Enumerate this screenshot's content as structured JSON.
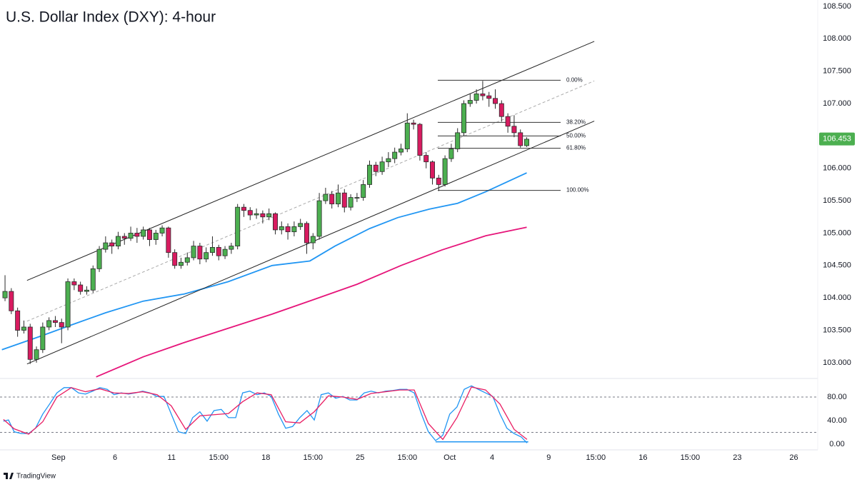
{
  "chart_data": [
    {
      "type": "candlestick",
      "title": "U.S. Dollar Index (DXY): 4-hour",
      "x": [
        -17,
        -15,
        -13,
        -11,
        -9,
        -7,
        -5,
        -3,
        -1,
        1,
        3,
        5,
        7,
        9,
        11,
        13,
        15,
        17,
        19,
        21,
        23,
        25,
        27,
        29,
        31,
        33,
        35,
        37,
        39,
        41,
        43,
        45,
        47,
        49,
        51,
        53,
        55,
        57,
        59,
        61,
        63,
        65,
        67,
        69,
        71,
        73,
        75,
        77,
        79,
        81,
        83,
        85,
        87,
        89,
        91,
        93,
        95,
        97,
        99,
        101,
        103,
        105,
        107,
        109,
        111,
        113,
        115,
        117,
        119,
        121,
        123,
        125,
        127,
        129,
        131,
        133,
        135,
        137,
        139,
        141,
        143,
        145,
        147,
        149
      ],
      "open": [
        104.0,
        104.1,
        103.8,
        103.5,
        103.55,
        103.05,
        103.2,
        103.55,
        103.65,
        103.62,
        103.55,
        104.25,
        104.2,
        104.1,
        104.12,
        104.45,
        104.75,
        104.85,
        104.8,
        104.95,
        104.92,
        105.0,
        104.95,
        105.05,
        104.9,
        105.0,
        105.08,
        104.7,
        104.5,
        104.55,
        104.62,
        104.8,
        104.6,
        104.7,
        104.78,
        104.65,
        104.75,
        104.8,
        105.4,
        105.35,
        105.28,
        105.3,
        105.25,
        105.3,
        105.05,
        105.1,
        105.02,
        105.1,
        105.15,
        104.85,
        104.95,
        105.5,
        105.6,
        105.45,
        105.62,
        105.4,
        105.55,
        105.55,
        105.75,
        106.05,
        105.95,
        106.1,
        106.15,
        106.25,
        106.3,
        106.7,
        106.68,
        106.2,
        106.1,
        105.85,
        105.75,
        106.15,
        106.3,
        106.55,
        107.0,
        107.05,
        107.15,
        107.12,
        107.08,
        107.0,
        106.8,
        106.65,
        106.55,
        106.35
      ],
      "high": [
        104.35,
        104.15,
        103.85,
        103.65,
        103.6,
        103.25,
        103.62,
        103.7,
        103.72,
        103.68,
        104.3,
        104.3,
        104.25,
        104.18,
        104.5,
        104.8,
        104.95,
        104.9,
        105.02,
        105.0,
        105.1,
        105.08,
        105.1,
        105.08,
        105.05,
        105.12,
        105.1,
        104.75,
        104.62,
        104.7,
        104.88,
        104.85,
        104.78,
        104.95,
        104.82,
        104.8,
        104.85,
        105.45,
        105.45,
        105.4,
        105.38,
        105.35,
        105.38,
        105.32,
        105.18,
        105.15,
        105.18,
        105.22,
        105.18,
        105.0,
        105.62,
        105.7,
        105.65,
        105.75,
        105.68,
        105.6,
        105.62,
        105.82,
        106.12,
        106.1,
        106.18,
        106.25,
        106.32,
        106.38,
        106.85,
        106.75,
        106.7,
        106.25,
        106.12,
        105.9,
        106.2,
        106.38,
        106.62,
        107.05,
        107.15,
        107.22,
        107.35,
        107.18,
        107.22,
        107.05,
        106.85,
        106.82,
        106.6,
        106.48
      ],
      "low": [
        103.95,
        103.75,
        103.4,
        103.45,
        102.98,
        103.0,
        103.15,
        103.5,
        103.55,
        103.3,
        103.5,
        104.12,
        104.05,
        104.05,
        104.08,
        104.4,
        104.7,
        104.68,
        104.75,
        104.82,
        104.88,
        104.85,
        104.9,
        104.8,
        104.82,
        104.95,
        104.62,
        104.45,
        104.45,
        104.5,
        104.58,
        104.52,
        104.55,
        104.65,
        104.58,
        104.6,
        104.68,
        104.75,
        105.25,
        105.2,
        105.22,
        105.15,
        105.2,
        104.98,
        104.98,
        104.9,
        104.95,
        105.05,
        104.68,
        104.75,
        104.9,
        105.45,
        105.38,
        105.4,
        105.32,
        105.35,
        105.48,
        105.5,
        105.7,
        105.88,
        105.9,
        106.02,
        106.08,
        106.2,
        106.25,
        106.6,
        106.12,
        106.0,
        105.75,
        105.65,
        105.72,
        106.1,
        106.25,
        106.5,
        106.95,
        107.0,
        107.05,
        106.95,
        106.92,
        106.72,
        106.55,
        106.48,
        106.32,
        106.33
      ],
      "close": [
        104.1,
        103.8,
        103.5,
        103.55,
        103.05,
        103.2,
        103.55,
        103.65,
        103.62,
        103.55,
        104.25,
        104.2,
        104.1,
        104.12,
        104.45,
        104.75,
        104.85,
        104.8,
        104.95,
        104.92,
        105.0,
        104.95,
        105.05,
        104.9,
        105.0,
        105.08,
        104.7,
        104.5,
        104.55,
        104.62,
        104.8,
        104.6,
        104.7,
        104.78,
        104.65,
        104.75,
        104.8,
        105.4,
        105.35,
        105.28,
        105.3,
        105.25,
        105.3,
        105.05,
        105.1,
        105.02,
        105.1,
        105.15,
        104.85,
        104.95,
        105.5,
        105.6,
        105.45,
        105.62,
        105.4,
        105.55,
        105.55,
        105.75,
        106.05,
        105.95,
        106.1,
        106.15,
        106.25,
        106.3,
        106.7,
        106.68,
        106.2,
        106.1,
        105.85,
        105.75,
        106.15,
        106.3,
        106.55,
        107.0,
        107.05,
        107.15,
        107.12,
        107.08,
        107.0,
        106.8,
        106.65,
        106.55,
        106.35,
        106.45
      ],
      "up_color": "#4caf50",
      "down_color": "#d81b60",
      "border_color": "#2b2b2b",
      "xlim": [
        -18.6,
        241.6
      ],
      "xticks": [
        {
          "value": 0,
          "label": "Sep"
        },
        {
          "value": 18,
          "label": "6"
        },
        {
          "value": 36,
          "label": "11"
        },
        {
          "value": 51,
          "label": "15:00"
        },
        {
          "value": 66,
          "label": "18"
        },
        {
          "value": 81,
          "label": "15:00"
        },
        {
          "value": 96,
          "label": "25"
        },
        {
          "value": 111,
          "label": "15:00"
        },
        {
          "value": 124.5,
          "label": "Oct"
        },
        {
          "value": 138,
          "label": "4"
        },
        {
          "value": 156,
          "label": "9"
        },
        {
          "value": 171,
          "label": "15:00"
        },
        {
          "value": 186,
          "label": "16"
        },
        {
          "value": 201,
          "label": "15:00"
        },
        {
          "value": 216,
          "label": "23"
        },
        {
          "value": 234,
          "label": "26"
        }
      ],
      "ylim": [
        102.756,
        108.599
      ],
      "yticks": [
        {
          "value": 103,
          "label": "103.000"
        },
        {
          "value": 103.5,
          "label": "103.500"
        },
        {
          "value": 104,
          "label": "104.000"
        },
        {
          "value": 104.5,
          "label": "104.500"
        },
        {
          "value": 105,
          "label": "105.000"
        },
        {
          "value": 105.5,
          "label": "105.500"
        },
        {
          "value": 106,
          "label": "106.000"
        },
        {
          "value": 106.5,
          "label": "106.500"
        },
        {
          "value": 107,
          "label": "107.000"
        },
        {
          "value": 107.5,
          "label": "107.500"
        },
        {
          "value": 108,
          "label": "108.000"
        },
        {
          "value": 108.5,
          "label": "108.500"
        }
      ],
      "last_price": {
        "value": 106.453,
        "label": "106.453"
      },
      "last_price_color": "#4caf50",
      "lines": [
        {
          "color": "#2196f3",
          "x": [
            -18,
            -5,
            4,
            15,
            27,
            40,
            54,
            68,
            80,
            88,
            99,
            108,
            118,
            127,
            136,
            149
          ],
          "values": [
            103.2,
            103.42,
            103.58,
            103.77,
            103.95,
            104.06,
            104.25,
            104.5,
            104.57,
            104.8,
            105.07,
            105.24,
            105.37,
            105.46,
            105.64,
            105.93
          ]
        },
        {
          "color": "#e6157a",
          "x": [
            12,
            27,
            40,
            54,
            68,
            81,
            95,
            109,
            122,
            136,
            149
          ],
          "values": [
            102.78,
            103.09,
            103.31,
            103.53,
            103.75,
            103.97,
            104.21,
            104.5,
            104.74,
            104.96,
            105.09
          ]
        }
      ],
      "trend_lines": [
        {
          "color": "#222222",
          "dashed": false,
          "x": [
            -10,
            170.5
          ],
          "values": [
            104.27,
            107.96
          ]
        },
        {
          "color": "#222222",
          "dashed": false,
          "x": [
            -10,
            170.5
          ],
          "values": [
            102.98,
            106.73
          ]
        },
        {
          "color": "#aaaaaa",
          "dashed": true,
          "x": [
            -10,
            170.5
          ],
          "values": [
            103.64,
            107.35
          ]
        }
      ],
      "fib": {
        "color": "#333333",
        "x": [
          120.7,
          159.8
        ],
        "levels": [
          {
            "label": "0.00%",
            "value": 107.36
          },
          {
            "label": "38.20%",
            "value": 106.71
          },
          {
            "label": "50.00%",
            "value": 106.5
          },
          {
            "label": "61.80%",
            "value": 106.31
          },
          {
            "label": "100.00%",
            "value": 105.66
          }
        ]
      }
    },
    {
      "type": "stochastic",
      "series": [
        {
          "color": "#2196f3",
          "x": [
            -17.5,
            -15.9,
            -14.1,
            -11.8,
            -9.5,
            -7.3,
            -5,
            -2.7,
            -0.5,
            1.8,
            4.1,
            6.4,
            8.6,
            10.9,
            13.2,
            15.5,
            17.7,
            20,
            22.3,
            24.5,
            26.8,
            29.1,
            31.4,
            33.6,
            35.9,
            38.2,
            40.5,
            42.7,
            45,
            47.3,
            49.5,
            51.8,
            54.1,
            56.4,
            58.6,
            60.9,
            63.2,
            65.5,
            67.7,
            70,
            72.3,
            74.5,
            76.8,
            79.1,
            81.4,
            83.6,
            85.9,
            88.2,
            90.5,
            92.7,
            95,
            97.3,
            99.5,
            101.8,
            104.1,
            106.4,
            108.6,
            110.9,
            113.2,
            115.5,
            117.7,
            120,
            122.3,
            124.5,
            126.8,
            129.1,
            131.4,
            133.6,
            135.9,
            138.2,
            140.5,
            142.7,
            145,
            147.3,
            149.1
          ],
          "values": [
            39,
            41,
            21,
            18,
            18,
            27,
            51,
            69,
            87,
            96,
            96,
            87,
            85,
            90,
            96,
            93,
            84,
            87,
            85,
            87,
            90,
            87,
            81,
            81,
            51,
            21,
            18,
            45,
            55,
            39,
            57,
            59,
            45,
            45,
            87,
            90,
            84,
            87,
            81,
            51,
            27,
            30,
            45,
            57,
            41,
            84,
            87,
            78,
            81,
            75,
            75,
            87,
            90,
            87,
            90,
            91,
            93,
            93,
            87,
            51,
            21,
            6,
            15,
            51,
            63,
            93,
            99,
            93,
            87,
            81,
            51,
            27,
            18,
            12,
            2
          ]
        },
        {
          "color": "#e91e63",
          "x": [
            -17.5,
            -14.1,
            -9.5,
            -5,
            -0.5,
            4.1,
            8.6,
            13.2,
            17.7,
            22.3,
            26.8,
            31.4,
            35.9,
            40.5,
            45,
            49.5,
            54.1,
            58.6,
            63.2,
            67.7,
            72.3,
            76.8,
            81.4,
            85.9,
            90.5,
            95,
            99.5,
            104.1,
            108.6,
            113.2,
            117.7,
            122.3,
            126.8,
            131.4,
            135.9,
            140.5,
            145,
            149.1
          ],
          "values": [
            42,
            26,
            17,
            38,
            80,
            96,
            89,
            94,
            87,
            86,
            89,
            84,
            65,
            25,
            48,
            50,
            52,
            72,
            87,
            84,
            38,
            36,
            55,
            82,
            80,
            76,
            86,
            89,
            92,
            92,
            35,
            8,
            45,
            97,
            92,
            68,
            25,
            8
          ]
        }
      ],
      "ylim": [
        -9.7,
        111.5
      ],
      "yticks": [
        {
          "value": 80,
          "label": "80.00"
        },
        {
          "value": 40,
          "label": "40.00"
        },
        {
          "value": 0,
          "label": "0.00"
        }
      ],
      "levels": [
        80,
        20
      ],
      "trend_lines": [
        {
          "color": "#2196f3",
          "dashed": false,
          "x": [
            120,
            149.5
          ],
          "values": [
            4,
            4
          ]
        }
      ]
    }
  ],
  "footer": {
    "logo": "TradingView"
  }
}
